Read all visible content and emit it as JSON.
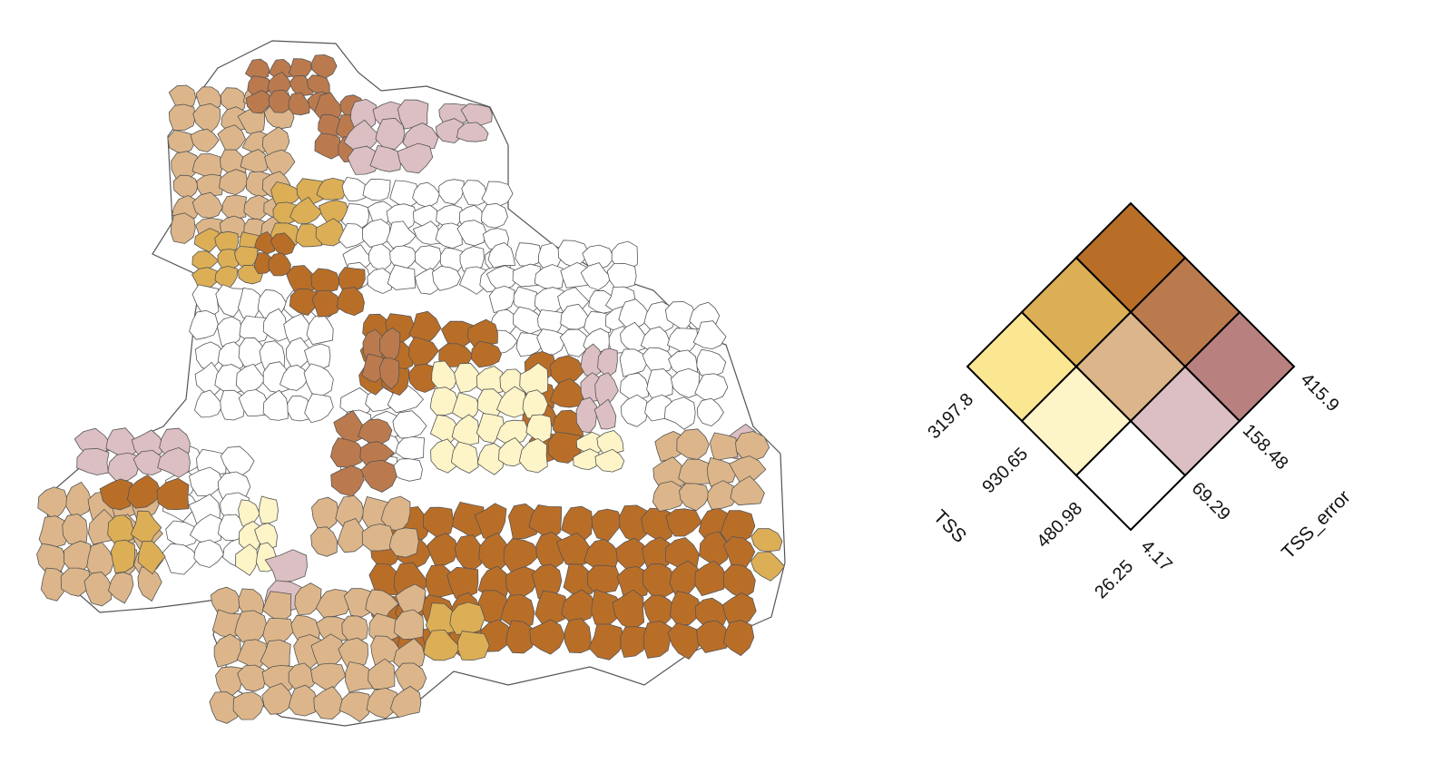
{
  "legend": {
    "x_axis_title": "TSS",
    "y_axis_title": "TSS_error",
    "x_breaks": [
      "26.25",
      "480.98",
      "930.65",
      "3197.8"
    ],
    "y_breaks": [
      "4.17",
      "69.29",
      "158.48",
      "415.9"
    ],
    "palette": [
      [
        "#ffffff",
        "#dcbfc3",
        "#b98080"
      ],
      [
        "#fdf4c8",
        "#dcb68a",
        "#bb7a4e"
      ],
      [
        "#fbe792",
        "#dcaf56",
        "#b96e28"
      ]
    ]
  },
  "map": {
    "title": "",
    "boundary_color": "#555555",
    "class_counts": {
      "low_low": 60,
      "low_mid": 12,
      "low_high": 0,
      "mid_low": 14,
      "mid_mid": 40,
      "mid_high": 9,
      "high_low": 0,
      "high_mid": 9,
      "high_high": 55
    }
  }
}
